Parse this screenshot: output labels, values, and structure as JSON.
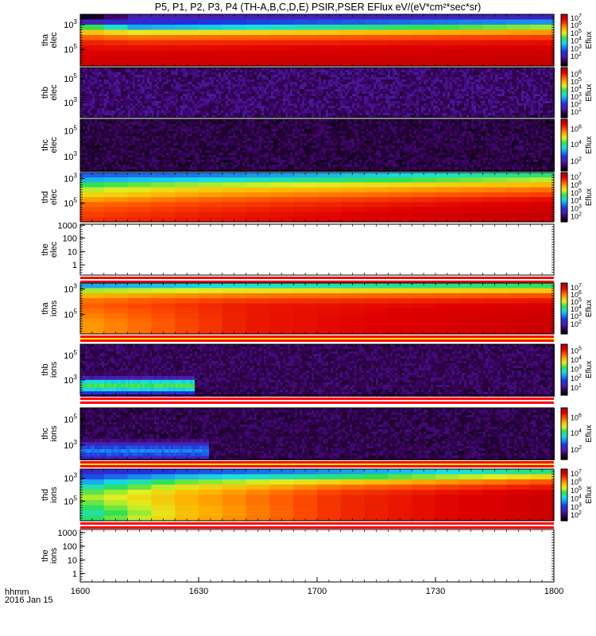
{
  "chart_data": {
    "type": "heatmap",
    "title": "P5, P1, P2, P3, P4 (TH-A,B,C,D,E) PSIR,PSER EFlux eV/(eV*cm²*sec*sr)",
    "x_axis": {
      "ticks": [
        "1600",
        "1630",
        "1700",
        "1730",
        "1800"
      ],
      "label_line1": "hhmm",
      "label_line2": "2016 Jan 15"
    },
    "colorbar_label": "Eflux",
    "panels": [
      {
        "id": "tha-elec",
        "label_line1": "tha",
        "label_line2": "elec",
        "kind": "spectrogram",
        "yticks": [
          {
            "mant": "10",
            "exp": "5",
            "frac": 0.68
          },
          {
            "mant": "10",
            "exp": "3",
            "frac": 0.2
          }
        ],
        "colorbar_ticks": [
          {
            "exp": "7",
            "frac": 0.06
          },
          {
            "exp": "6",
            "frac": 0.2
          },
          {
            "exp": "5",
            "frac": 0.35
          },
          {
            "exp": "4",
            "frac": 0.5
          },
          {
            "exp": "3",
            "frac": 0.65
          },
          {
            "exp": "2",
            "frac": 0.8
          }
        ],
        "spectrum": [
          {
            "until": 0.12,
            "start": [
              0.0,
              0.0,
              0.55,
              0.7,
              0.8,
              0.88,
              0.9,
              0.92,
              0.94,
              0.93
            ],
            "end": [
              0.15,
              0.22,
              0.32,
              0.62,
              0.78,
              0.86,
              0.9,
              0.92,
              0.94,
              0.93
            ]
          },
          {
            "until": 1.0,
            "start": [
              0.15,
              0.22,
              0.32,
              0.62,
              0.78,
              0.86,
              0.9,
              0.92,
              0.94,
              0.93
            ],
            "end": [
              0.15,
              0.28,
              0.56,
              0.74,
              0.84,
              0.9,
              0.93,
              0.95,
              0.96,
              0.95
            ]
          }
        ]
      },
      {
        "id": "thb-elec",
        "label_line1": "thb",
        "label_line2": "elec",
        "kind": "noise",
        "noise_base": 0.05,
        "noise_range": 0.12,
        "yticks": [
          {
            "mant": "10",
            "exp": "5",
            "frac": 0.22
          },
          {
            "mant": "10",
            "exp": "3",
            "frac": 0.7
          }
        ],
        "colorbar_ticks": [
          {
            "exp": "6",
            "frac": 0.12
          },
          {
            "exp": "5",
            "frac": 0.27
          },
          {
            "exp": "4",
            "frac": 0.42
          },
          {
            "exp": "3",
            "frac": 0.57
          },
          {
            "exp": "2",
            "frac": 0.72
          },
          {
            "exp": "1",
            "frac": 0.87
          }
        ]
      },
      {
        "id": "thc-elec",
        "label_line1": "thc",
        "label_line2": "elec",
        "kind": "noise",
        "noise_base": 0.02,
        "noise_range": 0.1,
        "yticks": [
          {
            "mant": "10",
            "exp": "5",
            "frac": 0.22
          },
          {
            "mant": "10",
            "exp": "3",
            "frac": 0.72
          }
        ],
        "colorbar_ticks": [
          {
            "exp": "6",
            "frac": 0.18
          },
          {
            "exp": "4",
            "frac": 0.48
          },
          {
            "exp": "2",
            "frac": 0.8
          }
        ]
      },
      {
        "id": "thd-elec",
        "label_line1": "thd",
        "label_line2": "elec",
        "kind": "spectrogram",
        "yticks": [
          {
            "mant": "10",
            "exp": "5",
            "frac": 0.62
          },
          {
            "mant": "10",
            "exp": "3",
            "frac": 0.12
          }
        ],
        "colorbar_ticks": [
          {
            "exp": "7",
            "frac": 0.08
          },
          {
            "exp": "6",
            "frac": 0.24
          },
          {
            "exp": "5",
            "frac": 0.4
          },
          {
            "exp": "4",
            "frac": 0.56
          },
          {
            "exp": "3",
            "frac": 0.72
          },
          {
            "exp": "2",
            "frac": 0.88
          }
        ],
        "spectrum": [
          {
            "until": 0.25,
            "start": [
              0.3,
              0.34,
              0.52,
              0.6,
              0.66,
              0.74,
              0.8,
              0.82,
              0.84,
              0.86
            ],
            "end": [
              0.32,
              0.38,
              0.58,
              0.68,
              0.74,
              0.8,
              0.84,
              0.86,
              0.88,
              0.88
            ]
          },
          {
            "until": 1.0,
            "start": [
              0.32,
              0.38,
              0.58,
              0.68,
              0.74,
              0.8,
              0.84,
              0.86,
              0.88,
              0.88
            ],
            "end": [
              0.48,
              0.58,
              0.7,
              0.78,
              0.84,
              0.9,
              0.93,
              0.95,
              0.96,
              0.96
            ]
          }
        ]
      },
      {
        "id": "the-elec",
        "label_line1": "the",
        "label_line2": "elec",
        "kind": "empty",
        "yticks": [
          {
            "mant": "1000",
            "exp": "",
            "frac": 0.02
          },
          {
            "mant": "100",
            "exp": "",
            "frac": 0.27
          },
          {
            "mant": "10",
            "exp": "",
            "frac": 0.54
          },
          {
            "mant": "1",
            "exp": "",
            "frac": 0.8
          }
        ]
      },
      {
        "id": "tha-ions",
        "label_line1": "tha",
        "label_line2": "ions",
        "kind": "spectrogram",
        "yticks": [
          {
            "mant": "10",
            "exp": "5",
            "frac": 0.62
          },
          {
            "mant": "10",
            "exp": "3",
            "frac": 0.12
          }
        ],
        "colorbar_ticks": [
          {
            "exp": "7",
            "frac": 0.08
          },
          {
            "exp": "6",
            "frac": 0.22
          },
          {
            "exp": "5",
            "frac": 0.36
          },
          {
            "exp": "4",
            "frac": 0.5
          },
          {
            "exp": "3",
            "frac": 0.64
          },
          {
            "exp": "2",
            "frac": 0.8
          }
        ],
        "spectrum": [
          {
            "until": 0.35,
            "start": [
              0.25,
              0.55,
              0.7,
              0.78,
              0.8,
              0.78,
              0.76,
              0.74,
              0.74,
              0.74
            ],
            "end": [
              0.35,
              0.6,
              0.76,
              0.84,
              0.88,
              0.88,
              0.88,
              0.88,
              0.88,
              0.88
            ]
          },
          {
            "until": 1.0,
            "start": [
              0.35,
              0.6,
              0.76,
              0.84,
              0.88,
              0.88,
              0.88,
              0.88,
              0.88,
              0.88
            ],
            "end": [
              0.45,
              0.64,
              0.8,
              0.88,
              0.92,
              0.94,
              0.95,
              0.95,
              0.95,
              0.95
            ]
          }
        ]
      },
      {
        "id": "thb-ions",
        "label_line1": "thb",
        "label_line2": "ions",
        "kind": "noise",
        "noise_base": 0.04,
        "noise_range": 0.1,
        "blob": {
          "t_end": 0.24,
          "y_start": 0.55,
          "levels": [
            0.1,
            0.18,
            0.45,
            0.55,
            0.45,
            0.25
          ]
        },
        "yticks": [
          {
            "mant": "10",
            "exp": "5",
            "frac": 0.22
          },
          {
            "mant": "10",
            "exp": "3",
            "frac": 0.7
          }
        ],
        "colorbar_ticks": [
          {
            "exp": "5",
            "frac": 0.12
          },
          {
            "exp": "4",
            "frac": 0.3
          },
          {
            "exp": "3",
            "frac": 0.48
          },
          {
            "exp": "2",
            "frac": 0.66
          },
          {
            "exp": "1",
            "frac": 0.84
          }
        ]
      },
      {
        "id": "thc-ions",
        "label_line1": "thc",
        "label_line2": "ions",
        "kind": "noise",
        "noise_base": 0.03,
        "noise_range": 0.1,
        "blob": {
          "t_end": 0.27,
          "y_start": 0.6,
          "levels": [
            0.12,
            0.2,
            0.3,
            0.35,
            0.3,
            0.22
          ]
        },
        "yticks": [
          {
            "mant": "10",
            "exp": "5",
            "frac": 0.22
          },
          {
            "mant": "10",
            "exp": "3",
            "frac": 0.72
          }
        ],
        "colorbar_ticks": [
          {
            "exp": "6",
            "frac": 0.18
          },
          {
            "exp": "4",
            "frac": 0.48
          },
          {
            "exp": "2",
            "frac": 0.8
          }
        ]
      },
      {
        "id": "thd-ions",
        "label_line1": "thd",
        "label_line2": "ions",
        "kind": "spectrogram",
        "yticks": [
          {
            "mant": "10",
            "exp": "5",
            "frac": 0.62
          },
          {
            "mant": "10",
            "exp": "3",
            "frac": 0.18
          }
        ],
        "colorbar_ticks": [
          {
            "exp": "7",
            "frac": 0.08
          },
          {
            "exp": "6",
            "frac": 0.24
          },
          {
            "exp": "5",
            "frac": 0.4
          },
          {
            "exp": "4",
            "frac": 0.56
          },
          {
            "exp": "3",
            "frac": 0.72
          },
          {
            "exp": "2",
            "frac": 0.88
          }
        ],
        "spectrum": [
          {
            "until": 0.22,
            "start": [
              0.2,
              0.25,
              0.35,
              0.45,
              0.55,
              0.6,
              0.55,
              0.5,
              0.45,
              0.55
            ],
            "end": [
              0.25,
              0.35,
              0.55,
              0.65,
              0.7,
              0.72,
              0.72,
              0.7,
              0.7,
              0.72
            ]
          },
          {
            "until": 0.55,
            "start": [
              0.25,
              0.35,
              0.55,
              0.65,
              0.7,
              0.72,
              0.72,
              0.7,
              0.7,
              0.72
            ],
            "end": [
              0.32,
              0.45,
              0.65,
              0.78,
              0.84,
              0.86,
              0.86,
              0.86,
              0.86,
              0.86
            ]
          },
          {
            "until": 1.0,
            "start": [
              0.32,
              0.45,
              0.65,
              0.78,
              0.84,
              0.86,
              0.86,
              0.86,
              0.86,
              0.86
            ],
            "end": [
              0.45,
              0.62,
              0.8,
              0.88,
              0.93,
              0.95,
              0.95,
              0.95,
              0.95,
              0.95
            ]
          }
        ]
      },
      {
        "id": "the-ions",
        "label_line1": "the",
        "label_line2": "ions",
        "kind": "empty",
        "yticks": [
          {
            "mant": "1000",
            "exp": "",
            "frac": 0.06
          },
          {
            "mant": "100",
            "exp": "",
            "frac": 0.32
          },
          {
            "mant": "10",
            "exp": "",
            "frac": 0.58
          },
          {
            "mant": "1",
            "exp": "",
            "frac": 0.84
          }
        ]
      }
    ],
    "colormap": [
      "#000000",
      "#3a005a",
      "#4b1fae",
      "#2030e0",
      "#1a8bf0",
      "#18e0e0",
      "#30e050",
      "#e0f020",
      "#ffb000",
      "#ff5000",
      "#e00000",
      "#b00000"
    ]
  }
}
